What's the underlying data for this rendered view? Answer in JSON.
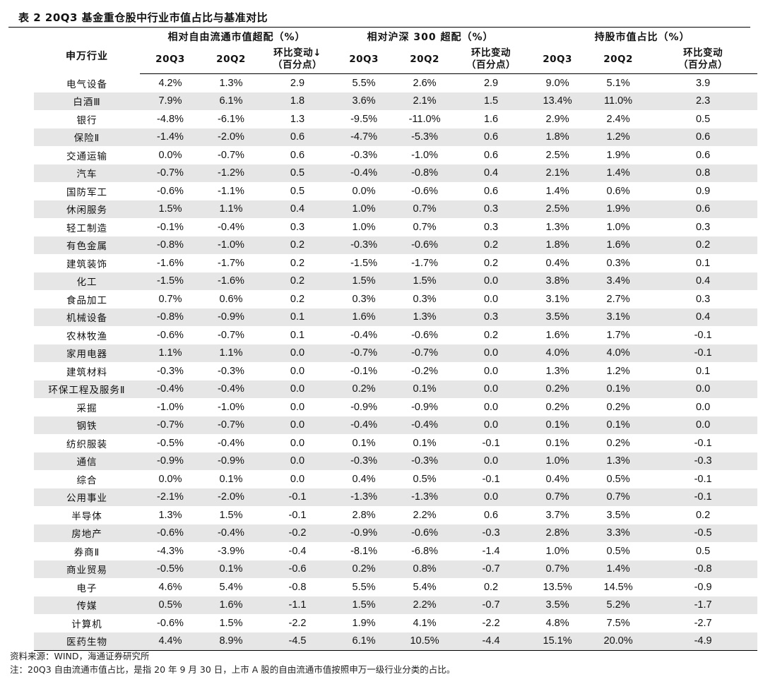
{
  "title": "表 2 20Q3 基金重仓股中行业市值占比与基准对比",
  "header": {
    "industry": "申万行业",
    "group1": "相对自由流通市值超配（%）",
    "group2": "相对沪深 300 超配（%）",
    "group3": "持股市值占比（%）",
    "q3": "20Q3",
    "q2": "20Q2",
    "chg1_line1": "环比变动↓",
    "chg_line1": "环比变动",
    "chg_line2": "（百分点）"
  },
  "rows": [
    [
      "电气设备",
      "4.2%",
      "1.3%",
      "2.9",
      "5.5%",
      "2.6%",
      "2.9",
      "9.0%",
      "5.1%",
      "3.9"
    ],
    [
      "白酒Ⅲ",
      "7.9%",
      "6.1%",
      "1.8",
      "3.6%",
      "2.1%",
      "1.5",
      "13.4%",
      "11.0%",
      "2.3"
    ],
    [
      "银行",
      "-4.8%",
      "-6.1%",
      "1.3",
      "-9.5%",
      "-11.0%",
      "1.6",
      "2.9%",
      "2.4%",
      "0.5"
    ],
    [
      "保险Ⅱ",
      "-1.4%",
      "-2.0%",
      "0.6",
      "-4.7%",
      "-5.3%",
      "0.6",
      "1.8%",
      "1.2%",
      "0.6"
    ],
    [
      "交通运输",
      "0.0%",
      "-0.7%",
      "0.6",
      "-0.3%",
      "-1.0%",
      "0.6",
      "2.5%",
      "1.9%",
      "0.6"
    ],
    [
      "汽车",
      "-0.7%",
      "-1.2%",
      "0.5",
      "-0.4%",
      "-0.8%",
      "0.4",
      "2.1%",
      "1.4%",
      "0.8"
    ],
    [
      "国防军工",
      "-0.6%",
      "-1.1%",
      "0.5",
      "0.0%",
      "-0.6%",
      "0.6",
      "1.4%",
      "0.6%",
      "0.9"
    ],
    [
      "休闲服务",
      "1.5%",
      "1.1%",
      "0.4",
      "1.0%",
      "0.7%",
      "0.3",
      "2.5%",
      "1.9%",
      "0.6"
    ],
    [
      "轻工制造",
      "-0.1%",
      "-0.4%",
      "0.3",
      "1.0%",
      "0.7%",
      "0.3",
      "1.3%",
      "1.0%",
      "0.3"
    ],
    [
      "有色金属",
      "-0.8%",
      "-1.0%",
      "0.2",
      "-0.3%",
      "-0.6%",
      "0.2",
      "1.8%",
      "1.6%",
      "0.2"
    ],
    [
      "建筑装饰",
      "-1.6%",
      "-1.7%",
      "0.2",
      "-1.5%",
      "-1.7%",
      "0.2",
      "0.4%",
      "0.3%",
      "0.1"
    ],
    [
      "化工",
      "-1.5%",
      "-1.6%",
      "0.2",
      "1.5%",
      "1.5%",
      "0.0",
      "3.8%",
      "3.4%",
      "0.4"
    ],
    [
      "食品加工",
      "0.7%",
      "0.6%",
      "0.2",
      "0.3%",
      "0.3%",
      "0.0",
      "3.1%",
      "2.7%",
      "0.3"
    ],
    [
      "机械设备",
      "-0.8%",
      "-0.9%",
      "0.1",
      "1.6%",
      "1.3%",
      "0.3",
      "3.5%",
      "3.1%",
      "0.4"
    ],
    [
      "农林牧渔",
      "-0.6%",
      "-0.7%",
      "0.1",
      "-0.4%",
      "-0.6%",
      "0.2",
      "1.6%",
      "1.7%",
      "-0.1"
    ],
    [
      "家用电器",
      "1.1%",
      "1.1%",
      "0.0",
      "-0.7%",
      "-0.7%",
      "0.0",
      "4.0%",
      "4.0%",
      "-0.1"
    ],
    [
      "建筑材料",
      "-0.3%",
      "-0.3%",
      "0.0",
      "-0.1%",
      "-0.2%",
      "0.0",
      "1.3%",
      "1.2%",
      "0.1"
    ],
    [
      "环保工程及服务Ⅱ",
      "-0.4%",
      "-0.4%",
      "0.0",
      "0.2%",
      "0.1%",
      "0.0",
      "0.2%",
      "0.1%",
      "0.0"
    ],
    [
      "采掘",
      "-1.0%",
      "-1.0%",
      "0.0",
      "-0.9%",
      "-0.9%",
      "0.0",
      "0.2%",
      "0.2%",
      "0.0"
    ],
    [
      "钢铁",
      "-0.7%",
      "-0.7%",
      "0.0",
      "-0.4%",
      "-0.4%",
      "0.0",
      "0.1%",
      "0.1%",
      "0.0"
    ],
    [
      "纺织服装",
      "-0.5%",
      "-0.4%",
      "0.0",
      "0.1%",
      "0.1%",
      "-0.1",
      "0.1%",
      "0.2%",
      "-0.1"
    ],
    [
      "通信",
      "-0.9%",
      "-0.9%",
      "0.0",
      "-0.3%",
      "-0.3%",
      "0.0",
      "1.0%",
      "1.3%",
      "-0.3"
    ],
    [
      "综合",
      "0.0%",
      "0.1%",
      "0.0",
      "0.4%",
      "0.5%",
      "-0.1",
      "0.4%",
      "0.5%",
      "-0.1"
    ],
    [
      "公用事业",
      "-2.1%",
      "-2.0%",
      "-0.1",
      "-1.3%",
      "-1.3%",
      "0.0",
      "0.7%",
      "0.7%",
      "-0.1"
    ],
    [
      "半导体",
      "1.3%",
      "1.5%",
      "-0.1",
      "2.8%",
      "2.2%",
      "0.6",
      "3.7%",
      "3.5%",
      "0.2"
    ],
    [
      "房地产",
      "-0.6%",
      "-0.4%",
      "-0.2",
      "-0.9%",
      "-0.6%",
      "-0.3",
      "2.8%",
      "3.3%",
      "-0.5"
    ],
    [
      "券商Ⅱ",
      "-4.3%",
      "-3.9%",
      "-0.4",
      "-8.1%",
      "-6.8%",
      "-1.4",
      "1.0%",
      "0.5%",
      "0.5"
    ],
    [
      "商业贸易",
      "-0.5%",
      "0.1%",
      "-0.6",
      "0.2%",
      "0.8%",
      "-0.7",
      "0.7%",
      "1.4%",
      "-0.8"
    ],
    [
      "电子",
      "4.6%",
      "5.4%",
      "-0.8",
      "5.5%",
      "5.4%",
      "0.2",
      "13.5%",
      "14.5%",
      "-0.9"
    ],
    [
      "传媒",
      "0.5%",
      "1.6%",
      "-1.1",
      "1.5%",
      "2.2%",
      "-0.7",
      "3.5%",
      "5.2%",
      "-1.7"
    ],
    [
      "计算机",
      "-0.6%",
      "1.5%",
      "-2.2",
      "1.9%",
      "4.1%",
      "-2.2",
      "4.8%",
      "7.5%",
      "-2.7"
    ],
    [
      "医药生物",
      "4.4%",
      "8.9%",
      "-4.5",
      "6.1%",
      "10.5%",
      "-4.4",
      "15.1%",
      "20.0%",
      "-4.9"
    ]
  ],
  "notes": {
    "source": "资料来源：WIND，海通证券研究所",
    "note": "注：20Q3 自由流通市值占比，是指 20 年 9 月 30 日，上市 A 股的自由流通市值按照申万一级行业分类的占比。"
  }
}
